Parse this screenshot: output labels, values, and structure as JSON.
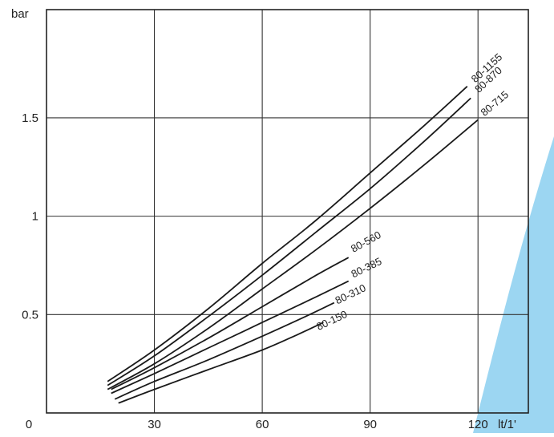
{
  "chart_data": {
    "type": "line",
    "xlabel": "lt/1'",
    "ylabel": "bar",
    "xlim": [
      0,
      134
    ],
    "ylim": [
      0,
      2.05
    ],
    "x_ticks": [
      {
        "value": 0,
        "label": "0"
      },
      {
        "value": 30,
        "label": "30"
      },
      {
        "value": 60,
        "label": "60"
      },
      {
        "value": 90,
        "label": "90"
      },
      {
        "value": 120,
        "label": "120"
      }
    ],
    "y_ticks": [
      {
        "value": 0.5,
        "label": "0.5"
      },
      {
        "value": 1,
        "label": "1"
      },
      {
        "value": 1.5,
        "label": "1.5"
      }
    ],
    "grid": true,
    "legend": "none",
    "series": [
      {
        "name": "80-1155",
        "points": [
          [
            17,
            0.16
          ],
          [
            30,
            0.32
          ],
          [
            45,
            0.53
          ],
          [
            60,
            0.76
          ],
          [
            75,
            0.98
          ],
          [
            90,
            1.22
          ],
          [
            105,
            1.46
          ],
          [
            117,
            1.66
          ]
        ]
      },
      {
        "name": "80-870",
        "points": [
          [
            17,
            0.14
          ],
          [
            30,
            0.29
          ],
          [
            45,
            0.49
          ],
          [
            60,
            0.7
          ],
          [
            75,
            0.92
          ],
          [
            90,
            1.14
          ],
          [
            105,
            1.38
          ],
          [
            118,
            1.6
          ]
        ]
      },
      {
        "name": "80-715",
        "points": [
          [
            17,
            0.12
          ],
          [
            30,
            0.25
          ],
          [
            45,
            0.43
          ],
          [
            60,
            0.63
          ],
          [
            75,
            0.83
          ],
          [
            90,
            1.04
          ],
          [
            105,
            1.26
          ],
          [
            120,
            1.49
          ]
        ]
      },
      {
        "name": "80-560",
        "points": [
          [
            18,
            0.12
          ],
          [
            30,
            0.23
          ],
          [
            45,
            0.38
          ],
          [
            60,
            0.54
          ],
          [
            75,
            0.7
          ],
          [
            84,
            0.79
          ]
        ]
      },
      {
        "name": "80-385",
        "points": [
          [
            18,
            0.1
          ],
          [
            30,
            0.2
          ],
          [
            45,
            0.33
          ],
          [
            60,
            0.46
          ],
          [
            75,
            0.59
          ],
          [
            84,
            0.67
          ]
        ]
      },
      {
        "name": "80-310",
        "points": [
          [
            19,
            0.07
          ],
          [
            30,
            0.16
          ],
          [
            45,
            0.27
          ],
          [
            60,
            0.39
          ],
          [
            72,
            0.49
          ],
          [
            80,
            0.56
          ]
        ]
      },
      {
        "name": "80-150",
        "points": [
          [
            20,
            0.05
          ],
          [
            30,
            0.12
          ],
          [
            45,
            0.22
          ],
          [
            60,
            0.32
          ],
          [
            70,
            0.4
          ],
          [
            77,
            0.46
          ]
        ]
      }
    ]
  }
}
